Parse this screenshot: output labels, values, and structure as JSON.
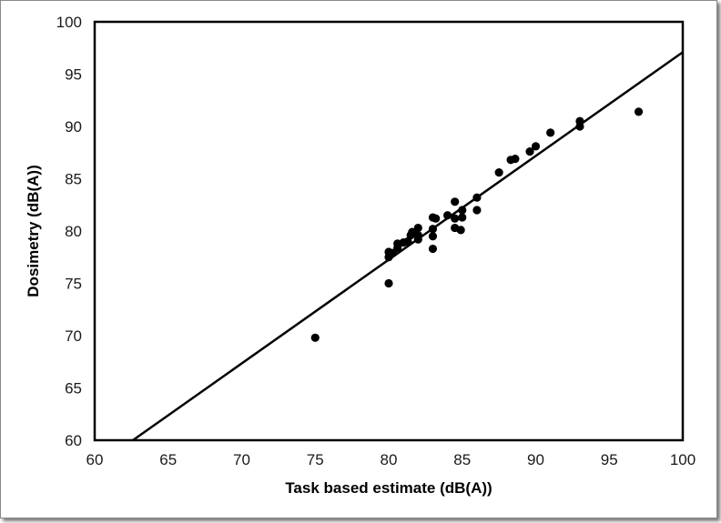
{
  "chart_data": {
    "type": "scatter",
    "title": "",
    "xlabel": "Task based estimate (dB(A))",
    "ylabel": "Dosimetry (dB(A))",
    "xlim": [
      60,
      100
    ],
    "ylim": [
      60,
      100
    ],
    "x_ticks": [
      "60",
      "65",
      "70",
      "75",
      "80",
      "85",
      "90",
      "95",
      "100"
    ],
    "y_ticks": [
      "60",
      "65",
      "70",
      "75",
      "80",
      "85",
      "90",
      "95",
      "100"
    ],
    "grid": false,
    "legend": "none",
    "series": [
      {
        "points": [
          [
            75,
            69.8
          ],
          [
            80,
            75
          ],
          [
            80,
            77.5
          ],
          [
            80,
            78
          ],
          [
            80.3,
            77.9
          ],
          [
            80.6,
            78.4
          ],
          [
            80.6,
            78.8
          ],
          [
            81,
            78.9
          ],
          [
            81.3,
            79
          ],
          [
            81.5,
            79.6
          ],
          [
            81.6,
            79.9
          ],
          [
            82,
            79.2
          ],
          [
            82,
            79.6
          ],
          [
            82,
            80.3
          ],
          [
            83,
            78.3
          ],
          [
            83,
            79.5
          ],
          [
            83,
            80.2
          ],
          [
            83,
            81.3
          ],
          [
            83.2,
            81.2
          ],
          [
            84,
            81.5
          ],
          [
            84.5,
            80.3
          ],
          [
            84.5,
            81.2
          ],
          [
            84.5,
            82.8
          ],
          [
            84.9,
            80.1
          ],
          [
            85,
            81.3
          ],
          [
            85,
            82
          ],
          [
            86,
            82
          ],
          [
            86,
            83.2
          ],
          [
            87.5,
            85.6
          ],
          [
            88.3,
            86.8
          ],
          [
            88.6,
            86.9
          ],
          [
            89.6,
            87.6
          ],
          [
            90,
            88.1
          ],
          [
            91,
            89.4
          ],
          [
            93,
            90
          ],
          [
            93,
            90.5
          ],
          [
            97,
            91.4
          ]
        ]
      }
    ],
    "trendline": {
      "x": [
        62.6,
        100
      ],
      "y": [
        60,
        97.1
      ]
    },
    "colors": {
      "marker": "#000000",
      "line": "#000000"
    }
  }
}
